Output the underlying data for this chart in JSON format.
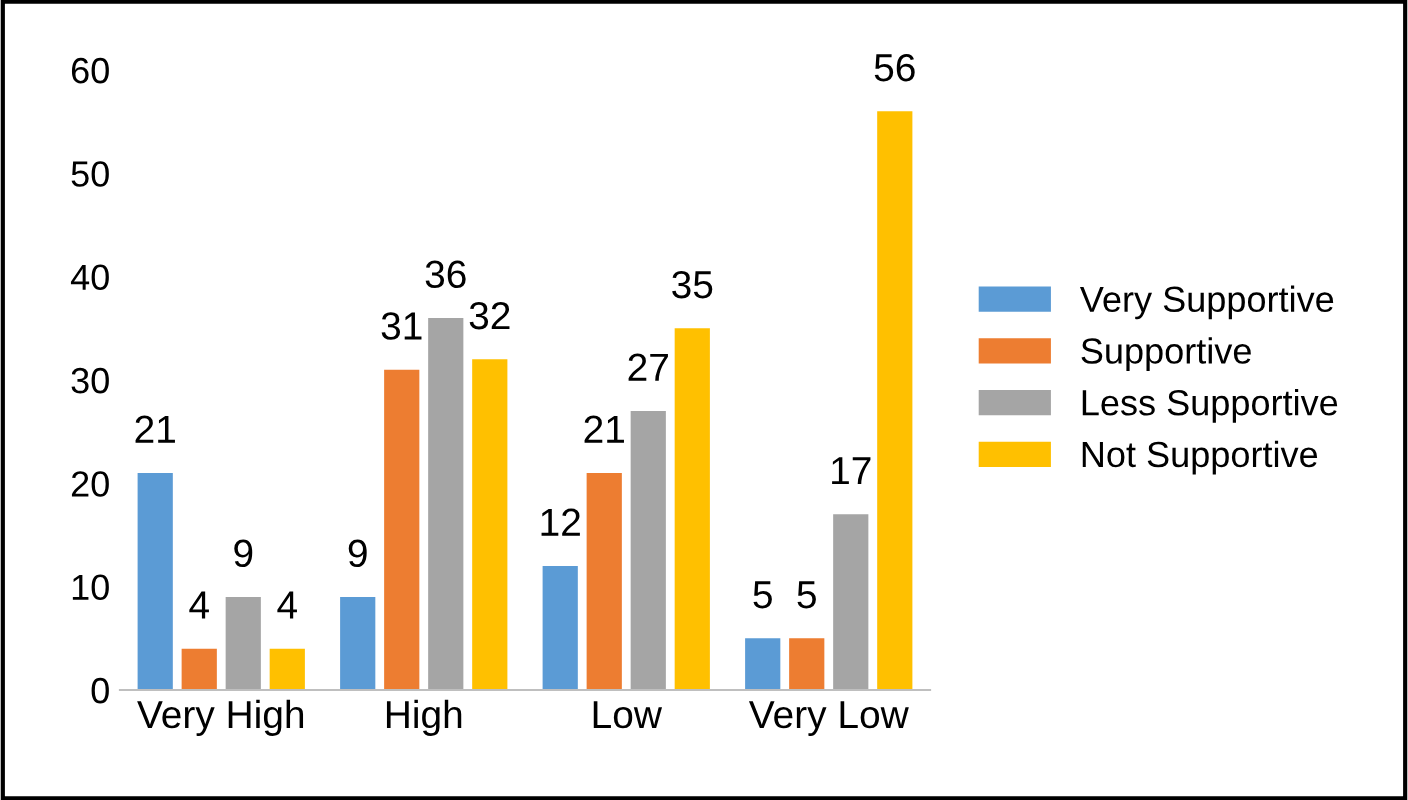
{
  "chart_data": {
    "type": "bar",
    "categories": [
      "Very High",
      "High",
      "Low",
      "Very Low"
    ],
    "series": [
      {
        "name": "Very Supportive",
        "color": "#5b9bd5",
        "values": [
          21,
          9,
          12,
          5
        ]
      },
      {
        "name": "Supportive",
        "color": "#ed7d31",
        "values": [
          4,
          31,
          21,
          5
        ]
      },
      {
        "name": "Less Supportive",
        "color": "#a5a5a5",
        "values": [
          9,
          36,
          27,
          17
        ]
      },
      {
        "name": "Not Supportive",
        "color": "#ffc000",
        "values": [
          4,
          32,
          35,
          56
        ]
      }
    ],
    "ylim": [
      0,
      60
    ],
    "yticks": [
      0,
      10,
      20,
      30,
      40,
      50,
      60
    ],
    "grid": false,
    "data_labels": true,
    "legend": "right"
  }
}
